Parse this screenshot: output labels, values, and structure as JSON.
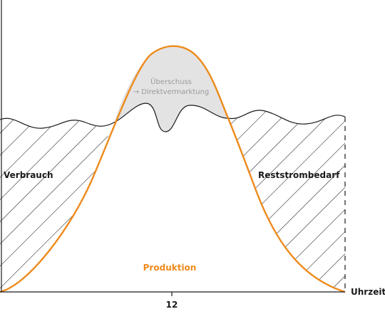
{
  "labels": {
    "consumption": "Verbrauch",
    "residual_demand": "Reststrombedarf",
    "production": "Produktion",
    "surplus_line1": "Überschuss",
    "surplus_line2": "→ Direktvermarktung"
  },
  "x_axis": {
    "label": "Uhrzeit",
    "tick": "12"
  },
  "colors": {
    "production": "#ee8a1c",
    "consumption": "#1a1a1a",
    "surplus_fill": "#e3e3e3",
    "hatch": "#1a1a1a"
  }
}
